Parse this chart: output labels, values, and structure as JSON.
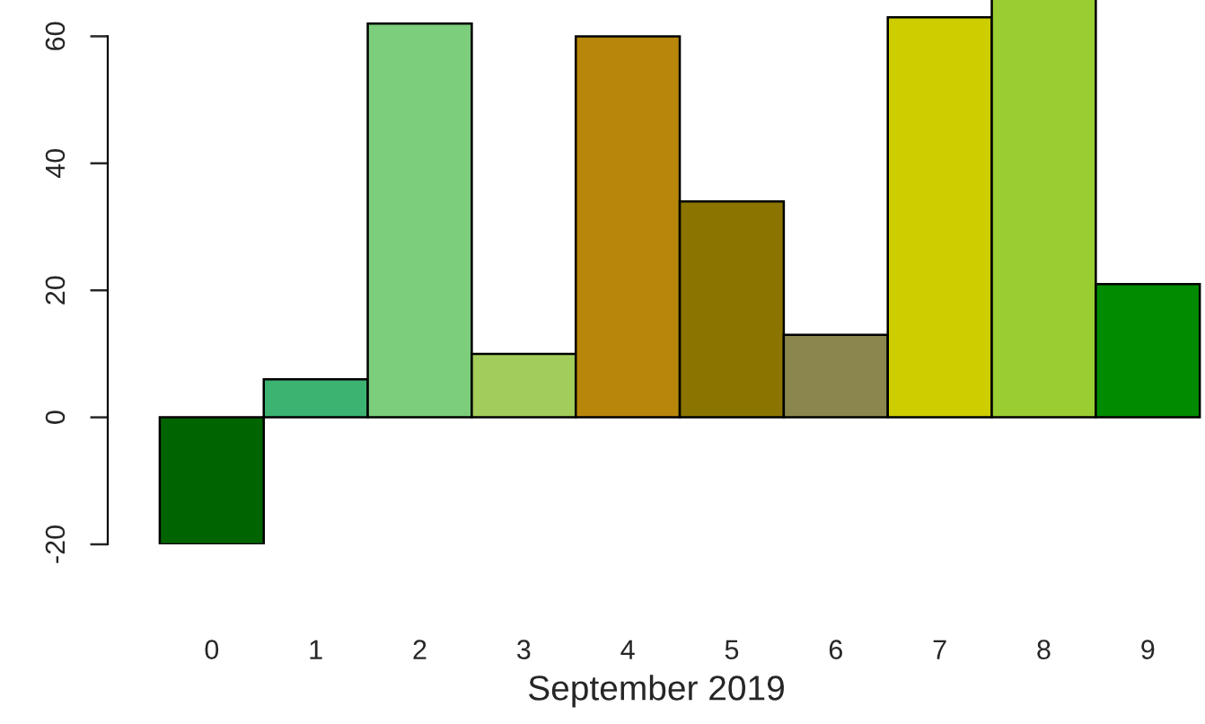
{
  "chart_data": {
    "type": "bar",
    "xlabel": "September 2019",
    "categories": [
      "0",
      "1",
      "2",
      "3",
      "4",
      "5",
      "6",
      "7",
      "8",
      "9"
    ],
    "values": [
      -20,
      6,
      62,
      10,
      60,
      34,
      13,
      63,
      66,
      21
    ],
    "colors": [
      "#006400",
      "#3cb371",
      "#7ccd7c",
      "#a2cd5a",
      "#b8860b",
      "#8b7500",
      "#8b864e",
      "#cdcd00",
      "#9acd32",
      "#008b00"
    ],
    "ylim": [
      -20,
      66
    ],
    "yticks": [
      -20,
      0,
      20,
      40,
      60
    ],
    "grid": false,
    "legend": false
  }
}
